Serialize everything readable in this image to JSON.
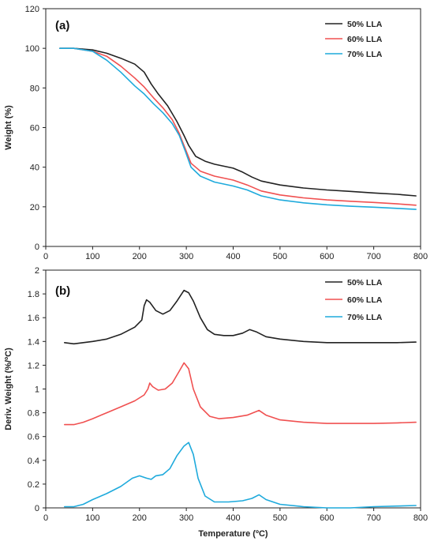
{
  "chart_data": [
    {
      "type": "line",
      "panel_label": "(a)",
      "ylabel": "Weight (%)",
      "xlabel": "",
      "xlim": [
        0,
        800
      ],
      "ylim": [
        0,
        120
      ],
      "x_ticks": [
        "0",
        "100",
        "200",
        "300",
        "400",
        "500",
        "600",
        "700",
        "800"
      ],
      "y_ticks": [
        "0",
        "20",
        "40",
        "60",
        "80",
        "100",
        "120"
      ],
      "legend_position": "top-right",
      "grid": false,
      "series": [
        {
          "name": "50% LLA",
          "color": "#222222",
          "points": [
            [
              30,
              100
            ],
            [
              60,
              100
            ],
            [
              100,
              99.2
            ],
            [
              130,
              97.5
            ],
            [
              160,
              95
            ],
            [
              190,
              92
            ],
            [
              210,
              88
            ],
            [
              225,
              82
            ],
            [
              240,
              77
            ],
            [
              260,
              71
            ],
            [
              280,
              63
            ],
            [
              295,
              56
            ],
            [
              305,
              51
            ],
            [
              320,
              45.5
            ],
            [
              340,
              43
            ],
            [
              360,
              41.5
            ],
            [
              380,
              40.5
            ],
            [
              400,
              39.5
            ],
            [
              420,
              37.5
            ],
            [
              440,
              35
            ],
            [
              460,
              33
            ],
            [
              500,
              31
            ],
            [
              550,
              29.5
            ],
            [
              600,
              28.5
            ],
            [
              650,
              27.8
            ],
            [
              700,
              27
            ],
            [
              750,
              26.3
            ],
            [
              790,
              25.5
            ]
          ]
        },
        {
          "name": "60% LLA",
          "color": "#f05050",
          "points": [
            [
              30,
              100
            ],
            [
              60,
              100
            ],
            [
              100,
              98.5
            ],
            [
              130,
              96
            ],
            [
              160,
              91
            ],
            [
              190,
              85
            ],
            [
              210,
              80.5
            ],
            [
              230,
              75
            ],
            [
              250,
              70
            ],
            [
              270,
              64
            ],
            [
              285,
              57
            ],
            [
              300,
              48
            ],
            [
              310,
              42
            ],
            [
              330,
              38
            ],
            [
              360,
              35.5
            ],
            [
              400,
              33.5
            ],
            [
              430,
              31
            ],
            [
              460,
              28
            ],
            [
              500,
              26
            ],
            [
              550,
              24.5
            ],
            [
              600,
              23.5
            ],
            [
              650,
              22.8
            ],
            [
              700,
              22.2
            ],
            [
              750,
              21.5
            ],
            [
              790,
              20.8
            ]
          ]
        },
        {
          "name": "70% LLA",
          "color": "#1eaadc",
          "points": [
            [
              30,
              100
            ],
            [
              60,
              100
            ],
            [
              100,
              98.5
            ],
            [
              130,
              94
            ],
            [
              160,
              88
            ],
            [
              190,
              81
            ],
            [
              210,
              77
            ],
            [
              230,
              72
            ],
            [
              250,
              67.5
            ],
            [
              270,
              62
            ],
            [
              285,
              56
            ],
            [
              298,
              48
            ],
            [
              310,
              40
            ],
            [
              330,
              35.5
            ],
            [
              360,
              32.5
            ],
            [
              400,
              30.5
            ],
            [
              430,
              28.5
            ],
            [
              460,
              25.5
            ],
            [
              500,
              23.5
            ],
            [
              550,
              22
            ],
            [
              600,
              21
            ],
            [
              650,
              20.3
            ],
            [
              700,
              19.8
            ],
            [
              750,
              19.2
            ],
            [
              790,
              18.7
            ]
          ]
        }
      ]
    },
    {
      "type": "line",
      "panel_label": "(b)",
      "ylabel": "Deriv. Weight (%/ºC)",
      "xlabel": "Temperature (ºC)",
      "xlim": [
        0,
        800
      ],
      "ylim": [
        0,
        2
      ],
      "x_ticks": [
        "0",
        "100",
        "200",
        "300",
        "400",
        "500",
        "600",
        "700",
        "800"
      ],
      "y_ticks": [
        "0",
        "0.2",
        "0.4",
        "0.6",
        "0.8",
        "1",
        "1.2",
        "1.4",
        "1.6",
        "1.8",
        "2"
      ],
      "legend_position": "top-right",
      "grid": false,
      "series": [
        {
          "name": "50% LLA",
          "color": "#222222",
          "points": [
            [
              40,
              1.39
            ],
            [
              60,
              1.38
            ],
            [
              100,
              1.4
            ],
            [
              130,
              1.42
            ],
            [
              160,
              1.46
            ],
            [
              190,
              1.52
            ],
            [
              205,
              1.58
            ],
            [
              210,
              1.7
            ],
            [
              215,
              1.75
            ],
            [
              222,
              1.73
            ],
            [
              235,
              1.66
            ],
            [
              250,
              1.63
            ],
            [
              265,
              1.66
            ],
            [
              280,
              1.74
            ],
            [
              295,
              1.83
            ],
            [
              305,
              1.81
            ],
            [
              315,
              1.74
            ],
            [
              330,
              1.6
            ],
            [
              345,
              1.5
            ],
            [
              360,
              1.46
            ],
            [
              380,
              1.45
            ],
            [
              400,
              1.45
            ],
            [
              420,
              1.47
            ],
            [
              435,
              1.5
            ],
            [
              450,
              1.48
            ],
            [
              470,
              1.44
            ],
            [
              500,
              1.42
            ],
            [
              550,
              1.4
            ],
            [
              600,
              1.39
            ],
            [
              650,
              1.39
            ],
            [
              700,
              1.39
            ],
            [
              750,
              1.39
            ],
            [
              790,
              1.395
            ]
          ]
        },
        {
          "name": "60% LLA",
          "color": "#f05050",
          "points": [
            [
              40,
              0.7
            ],
            [
              60,
              0.7
            ],
            [
              80,
              0.72
            ],
            [
              100,
              0.75
            ],
            [
              130,
              0.8
            ],
            [
              160,
              0.85
            ],
            [
              190,
              0.9
            ],
            [
              210,
              0.95
            ],
            [
              218,
              1.0
            ],
            [
              222,
              1.05
            ],
            [
              228,
              1.02
            ],
            [
              240,
              0.99
            ],
            [
              255,
              1.0
            ],
            [
              270,
              1.05
            ],
            [
              285,
              1.15
            ],
            [
              295,
              1.22
            ],
            [
              305,
              1.17
            ],
            [
              315,
              1.0
            ],
            [
              330,
              0.85
            ],
            [
              350,
              0.77
            ],
            [
              370,
              0.75
            ],
            [
              400,
              0.76
            ],
            [
              430,
              0.78
            ],
            [
              455,
              0.82
            ],
            [
              470,
              0.78
            ],
            [
              500,
              0.74
            ],
            [
              550,
              0.72
            ],
            [
              600,
              0.71
            ],
            [
              650,
              0.71
            ],
            [
              700,
              0.71
            ],
            [
              750,
              0.715
            ],
            [
              790,
              0.72
            ]
          ]
        },
        {
          "name": "70% LLA",
          "color": "#1eaadc",
          "points": [
            [
              40,
              0.01
            ],
            [
              60,
              0.01
            ],
            [
              80,
              0.03
            ],
            [
              100,
              0.07
            ],
            [
              130,
              0.12
            ],
            [
              160,
              0.18
            ],
            [
              185,
              0.25
            ],
            [
              200,
              0.27
            ],
            [
              215,
              0.25
            ],
            [
              225,
              0.24
            ],
            [
              235,
              0.27
            ],
            [
              250,
              0.28
            ],
            [
              265,
              0.33
            ],
            [
              280,
              0.44
            ],
            [
              295,
              0.52
            ],
            [
              305,
              0.55
            ],
            [
              315,
              0.45
            ],
            [
              325,
              0.25
            ],
            [
              340,
              0.1
            ],
            [
              360,
              0.05
            ],
            [
              390,
              0.05
            ],
            [
              420,
              0.06
            ],
            [
              440,
              0.08
            ],
            [
              455,
              0.11
            ],
            [
              470,
              0.07
            ],
            [
              500,
              0.03
            ],
            [
              550,
              0.01
            ],
            [
              600,
              0.0
            ],
            [
              650,
              0.0
            ],
            [
              700,
              0.01
            ],
            [
              750,
              0.015
            ],
            [
              790,
              0.02
            ]
          ]
        }
      ]
    }
  ]
}
